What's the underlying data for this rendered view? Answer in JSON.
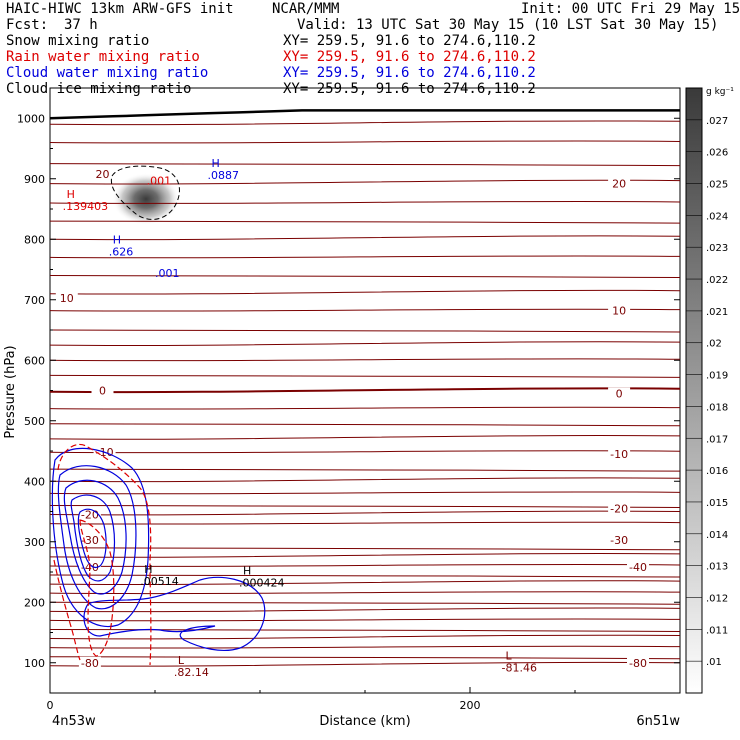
{
  "header": {
    "title_left": "HAIC-HIWC 13km ARW-GFS init",
    "org": "NCAR/MMM",
    "init": "Init: 00 UTC Fri 29 May 15",
    "fcst_label": "Fcst:",
    "fcst_value": "37 h",
    "valid": "Valid: 13 UTC Sat 30 May 15 (10 LST Sat 30 May 15)"
  },
  "legend": [
    {
      "name": "Snow mixing ratio",
      "color": "#000000",
      "xy": "XY= 259.5, 91.6 to 274.6,110.2"
    },
    {
      "name": "Rain water mixing ratio",
      "color": "#dd0000",
      "xy": "XY= 259.5, 91.6 to 274.6,110.2"
    },
    {
      "name": "Cloud water mixing ratio",
      "color": "#0000dd",
      "xy": "XY= 259.5, 91.6 to 274.6,110.2"
    },
    {
      "name": "Cloud ice mixing ratio",
      "color": "#000000",
      "xy": "XY= 259.5, 91.6 to 274.6,110.2"
    }
  ],
  "chart_data": {
    "type": "contour",
    "xlabel": "Distance (km)",
    "ylabel": "Pressure (hPa)",
    "xlim": [
      0,
      300
    ],
    "ylim": [
      1050,
      50
    ],
    "x_ticks": [
      0,
      200
    ],
    "x_end_labels": {
      "left": "4n53w",
      "right": "6n51w"
    },
    "y_ticks": [
      100,
      200,
      300,
      400,
      500,
      600,
      700,
      800,
      900,
      1000
    ],
    "temperature_contours": {
      "color": "#7a0000",
      "levels": [
        -80,
        -40,
        -30,
        -20,
        -10,
        0,
        10,
        20
      ],
      "labels": [
        {
          "text": "-80",
          "x": 19,
          "p": 100
        },
        {
          "text": "-80",
          "x": 280,
          "p": 100
        },
        {
          "text": "-40",
          "x": 19,
          "p": 258
        },
        {
          "text": "-40",
          "x": 280,
          "p": 258
        },
        {
          "text": "-30",
          "x": 19,
          "p": 303
        },
        {
          "text": "-30",
          "x": 271,
          "p": 303
        },
        {
          "text": "-20",
          "x": 19,
          "p": 345
        },
        {
          "text": "-20",
          "x": 271,
          "p": 355
        },
        {
          "text": "-10",
          "x": 26,
          "p": 448
        },
        {
          "text": "-10",
          "x": 271,
          "p": 445
        },
        {
          "text": "0",
          "x": 25,
          "p": 550
        },
        {
          "text": "0",
          "x": 271,
          "p": 545
        },
        {
          "text": "10",
          "x": 8,
          "p": 703
        },
        {
          "text": "10",
          "x": 271,
          "p": 682
        },
        {
          "text": "20",
          "x": 25,
          "p": 908
        },
        {
          "text": "20",
          "x": 271,
          "p": 892
        }
      ],
      "extrema": [
        {
          "kind": "L",
          "value": ".82.14",
          "x": 59,
          "p": 85
        },
        {
          "kind": "L",
          "value": "-81.46",
          "x": 215,
          "p": 92
        }
      ]
    },
    "snow": {
      "extrema": [
        {
          "kind": "H",
          "value": ".00514",
          "x": 43,
          "p": 235
        },
        {
          "kind": "H",
          "value": ".000424",
          "x": 90,
          "p": 233
        }
      ]
    },
    "rain": {
      "extrema": [
        {
          "kind": "H",
          "value": ".139403",
          "x": 6,
          "p": 855
        },
        {
          "value": ".001",
          "x": 46,
          "p": 897
        }
      ]
    },
    "cloud_water": {
      "extrema": [
        {
          "kind": "H",
          "value": ".626",
          "x": 28,
          "p": 780
        },
        {
          "value": ".001",
          "x": 50,
          "p": 744
        },
        {
          "kind": "H",
          "value": ".0887",
          "x": 75,
          "p": 906
        }
      ]
    },
    "terrain": {
      "p_left": 1000,
      "p_right": 1013
    },
    "colorbar": {
      "unit": "g kg⁻¹",
      "labels": [
        ".01",
        ".011",
        ".012",
        ".013",
        ".014",
        ".015",
        ".016",
        ".017",
        ".018",
        ".019",
        ".02",
        ".021",
        ".022",
        ".023",
        ".024",
        ".025",
        ".026",
        ".027"
      ],
      "color_light": "#ffffff",
      "color_dark": "#3a3a3a"
    }
  }
}
